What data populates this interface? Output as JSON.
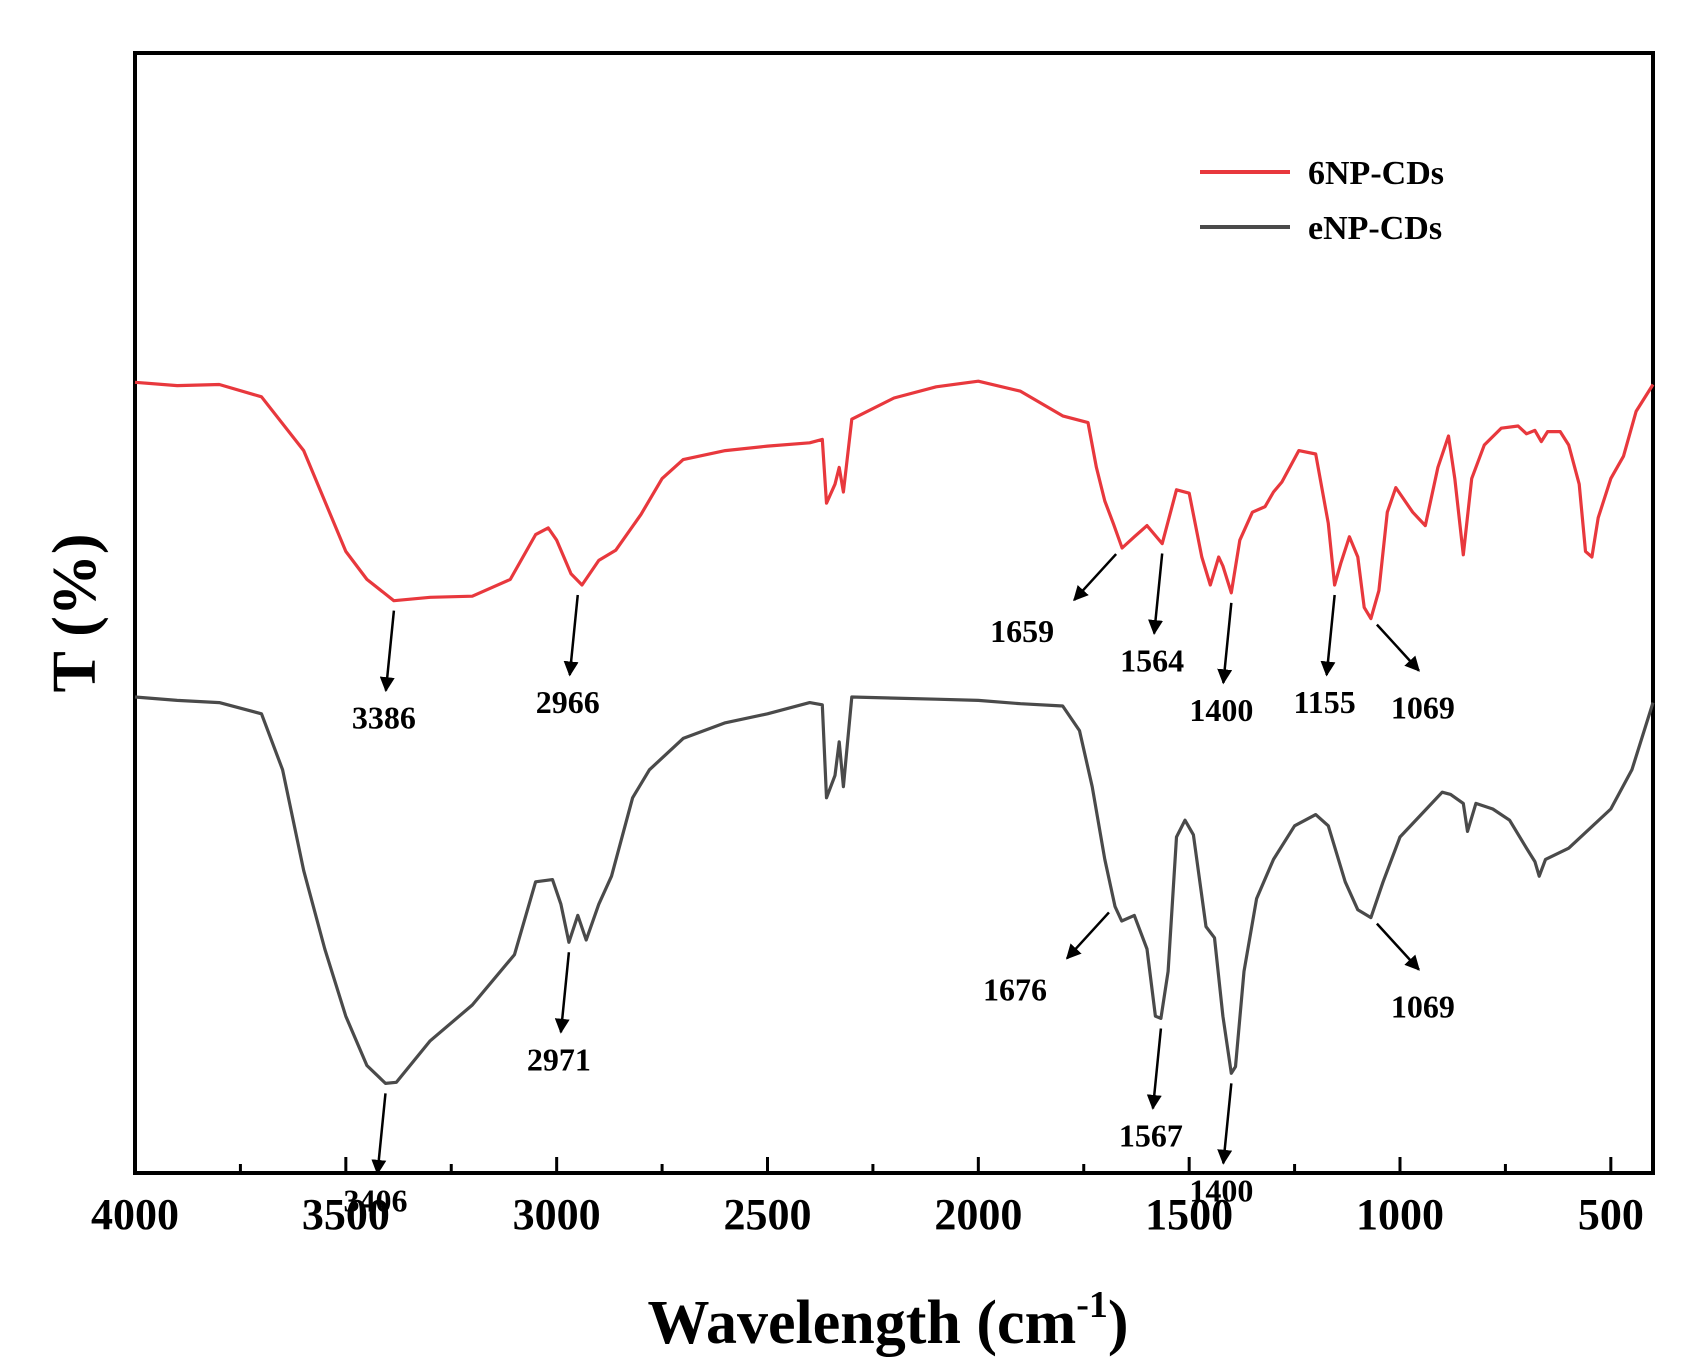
{
  "chart_data": {
    "type": "line",
    "title": "",
    "xlabel": "Wavelength (cm",
    "xlabel_sup": "-1",
    "xlabel_close": ")",
    "ylabel": "T (%)",
    "xlim": [
      4000,
      400
    ],
    "ylim": [
      0,
      100
    ],
    "x_ticks": [
      4000,
      3500,
      3000,
      2500,
      2000,
      1500,
      1000,
      500
    ],
    "y_ticks_shown": false,
    "grid": false,
    "legend_position": "top-right",
    "series": [
      {
        "name": "6NP-CDs",
        "color": "#e8383d",
        "points": [
          [
            4000,
            70.6
          ],
          [
            3900,
            70.3
          ],
          [
            3800,
            70.4
          ],
          [
            3700,
            69.3
          ],
          [
            3600,
            64.5
          ],
          [
            3500,
            55.5
          ],
          [
            3450,
            53.0
          ],
          [
            3386,
            51.1
          ],
          [
            3300,
            51.4
          ],
          [
            3200,
            51.5
          ],
          [
            3110,
            53.0
          ],
          [
            3050,
            57.0
          ],
          [
            3020,
            57.6
          ],
          [
            3000,
            56.5
          ],
          [
            2966,
            53.5
          ],
          [
            2940,
            52.5
          ],
          [
            2900,
            54.7
          ],
          [
            2860,
            55.6
          ],
          [
            2800,
            58.8
          ],
          [
            2750,
            62.0
          ],
          [
            2700,
            63.7
          ],
          [
            2600,
            64.5
          ],
          [
            2500,
            64.9
          ],
          [
            2400,
            65.2
          ],
          [
            2370,
            65.5
          ],
          [
            2360,
            59.8
          ],
          [
            2340,
            61.5
          ],
          [
            2330,
            63.0
          ],
          [
            2320,
            60.8
          ],
          [
            2300,
            67.3
          ],
          [
            2200,
            69.2
          ],
          [
            2100,
            70.2
          ],
          [
            2000,
            70.7
          ],
          [
            1900,
            69.8
          ],
          [
            1800,
            67.6
          ],
          [
            1740,
            67.0
          ],
          [
            1720,
            63.0
          ],
          [
            1700,
            60.0
          ],
          [
            1680,
            58.0
          ],
          [
            1659,
            55.8
          ],
          [
            1630,
            56.8
          ],
          [
            1600,
            57.8
          ],
          [
            1564,
            56.2
          ],
          [
            1530,
            61.0
          ],
          [
            1500,
            60.7
          ],
          [
            1470,
            55.0
          ],
          [
            1450,
            52.5
          ],
          [
            1430,
            55.0
          ],
          [
            1420,
            54.2
          ],
          [
            1400,
            51.8
          ],
          [
            1380,
            56.5
          ],
          [
            1350,
            59.0
          ],
          [
            1320,
            59.5
          ],
          [
            1300,
            60.8
          ],
          [
            1280,
            61.7
          ],
          [
            1240,
            64.5
          ],
          [
            1200,
            64.2
          ],
          [
            1170,
            58.0
          ],
          [
            1155,
            52.5
          ],
          [
            1140,
            54.5
          ],
          [
            1120,
            56.8
          ],
          [
            1100,
            55.0
          ],
          [
            1085,
            50.5
          ],
          [
            1069,
            49.5
          ],
          [
            1050,
            52.0
          ],
          [
            1030,
            59.0
          ],
          [
            1010,
            61.2
          ],
          [
            970,
            59.0
          ],
          [
            940,
            57.8
          ],
          [
            910,
            63.0
          ],
          [
            885,
            65.8
          ],
          [
            870,
            62.0
          ],
          [
            850,
            55.2
          ],
          [
            830,
            62.0
          ],
          [
            800,
            65.0
          ],
          [
            760,
            66.5
          ],
          [
            720,
            66.7
          ],
          [
            700,
            66.0
          ],
          [
            680,
            66.3
          ],
          [
            665,
            65.3
          ],
          [
            650,
            66.2
          ],
          [
            620,
            66.2
          ],
          [
            600,
            65.0
          ],
          [
            575,
            61.5
          ],
          [
            560,
            55.5
          ],
          [
            545,
            55.0
          ],
          [
            530,
            58.5
          ],
          [
            500,
            62.0
          ],
          [
            470,
            64.0
          ],
          [
            440,
            68.0
          ],
          [
            400,
            70.4
          ]
        ]
      },
      {
        "name": "eNP-CDs",
        "color": "#4a4a4a",
        "points": [
          [
            4000,
            42.5
          ],
          [
            3900,
            42.2
          ],
          [
            3800,
            42.0
          ],
          [
            3700,
            41.0
          ],
          [
            3650,
            36.0
          ],
          [
            3600,
            27.0
          ],
          [
            3550,
            20.0
          ],
          [
            3500,
            14.0
          ],
          [
            3450,
            9.6
          ],
          [
            3406,
            8.0
          ],
          [
            3380,
            8.1
          ],
          [
            3300,
            11.8
          ],
          [
            3200,
            15.0
          ],
          [
            3100,
            19.5
          ],
          [
            3050,
            26.0
          ],
          [
            3010,
            26.2
          ],
          [
            2990,
            24.0
          ],
          [
            2971,
            20.6
          ],
          [
            2950,
            23.0
          ],
          [
            2930,
            20.8
          ],
          [
            2900,
            24.0
          ],
          [
            2870,
            26.5
          ],
          [
            2820,
            33.5
          ],
          [
            2780,
            36.0
          ],
          [
            2700,
            38.8
          ],
          [
            2600,
            40.2
          ],
          [
            2500,
            41.0
          ],
          [
            2400,
            42.0
          ],
          [
            2370,
            41.8
          ],
          [
            2360,
            33.5
          ],
          [
            2340,
            35.5
          ],
          [
            2330,
            38.5
          ],
          [
            2320,
            34.5
          ],
          [
            2300,
            42.5
          ],
          [
            2200,
            42.4
          ],
          [
            2100,
            42.3
          ],
          [
            2000,
            42.2
          ],
          [
            1900,
            41.9
          ],
          [
            1800,
            41.7
          ],
          [
            1760,
            39.5
          ],
          [
            1730,
            34.5
          ],
          [
            1700,
            28.0
          ],
          [
            1676,
            23.8
          ],
          [
            1660,
            22.5
          ],
          [
            1630,
            23.0
          ],
          [
            1600,
            20.0
          ],
          [
            1580,
            14.0
          ],
          [
            1567,
            13.8
          ],
          [
            1550,
            18.0
          ],
          [
            1530,
            30.0
          ],
          [
            1510,
            31.5
          ],
          [
            1490,
            30.2
          ],
          [
            1460,
            22.0
          ],
          [
            1440,
            21.0
          ],
          [
            1420,
            14.0
          ],
          [
            1400,
            8.9
          ],
          [
            1390,
            9.5
          ],
          [
            1370,
            18.0
          ],
          [
            1340,
            24.5
          ],
          [
            1300,
            28.0
          ],
          [
            1250,
            31.0
          ],
          [
            1200,
            32.0
          ],
          [
            1170,
            31.0
          ],
          [
            1130,
            26.0
          ],
          [
            1100,
            23.5
          ],
          [
            1069,
            22.8
          ],
          [
            1040,
            26.0
          ],
          [
            1000,
            30.0
          ],
          [
            950,
            32.0
          ],
          [
            900,
            34.0
          ],
          [
            880,
            33.8
          ],
          [
            850,
            33.0
          ],
          [
            840,
            30.5
          ],
          [
            820,
            33.0
          ],
          [
            780,
            32.5
          ],
          [
            740,
            31.5
          ],
          [
            700,
            29.0
          ],
          [
            680,
            27.8
          ],
          [
            670,
            26.5
          ],
          [
            655,
            28.0
          ],
          [
            600,
            29.0
          ],
          [
            500,
            32.5
          ],
          [
            450,
            36.0
          ],
          [
            400,
            42.0
          ]
        ]
      }
    ],
    "annotations": [
      {
        "label": "3386",
        "series": "6NP-CDs",
        "x": 3386,
        "y": 51.1,
        "dir": "below"
      },
      {
        "label": "2966",
        "series": "6NP-CDs",
        "x": 2950,
        "y": 52.5,
        "dir": "below"
      },
      {
        "label": "1659",
        "series": "6NP-CDs",
        "x": 1659,
        "y": 55.8,
        "dir": "down-left"
      },
      {
        "label": "1564",
        "series": "6NP-CDs",
        "x": 1564,
        "y": 56.2,
        "dir": "below"
      },
      {
        "label": "1400",
        "series": "6NP-CDs",
        "x": 1400,
        "y": 51.8,
        "dir": "below"
      },
      {
        "label": "1155",
        "series": "6NP-CDs",
        "x": 1155,
        "y": 52.5,
        "dir": "below"
      },
      {
        "label": "1069",
        "series": "6NP-CDs",
        "x": 1069,
        "y": 49.5,
        "dir": "down-right"
      },
      {
        "label": "3406",
        "series": "eNP-CDs",
        "x": 3406,
        "y": 8.0,
        "dir": "below"
      },
      {
        "label": "2971",
        "series": "eNP-CDs",
        "x": 2971,
        "y": 20.6,
        "dir": "below"
      },
      {
        "label": "1676",
        "series": "eNP-CDs",
        "x": 1676,
        "y": 23.8,
        "dir": "down-left"
      },
      {
        "label": "1567",
        "series": "eNP-CDs",
        "x": 1567,
        "y": 13.8,
        "dir": "below"
      },
      {
        "label": "1400",
        "series": "eNP-CDs",
        "x": 1400,
        "y": 8.9,
        "dir": "below"
      },
      {
        "label": "1069",
        "series": "eNP-CDs",
        "x": 1069,
        "y": 22.8,
        "dir": "down-right"
      }
    ]
  }
}
